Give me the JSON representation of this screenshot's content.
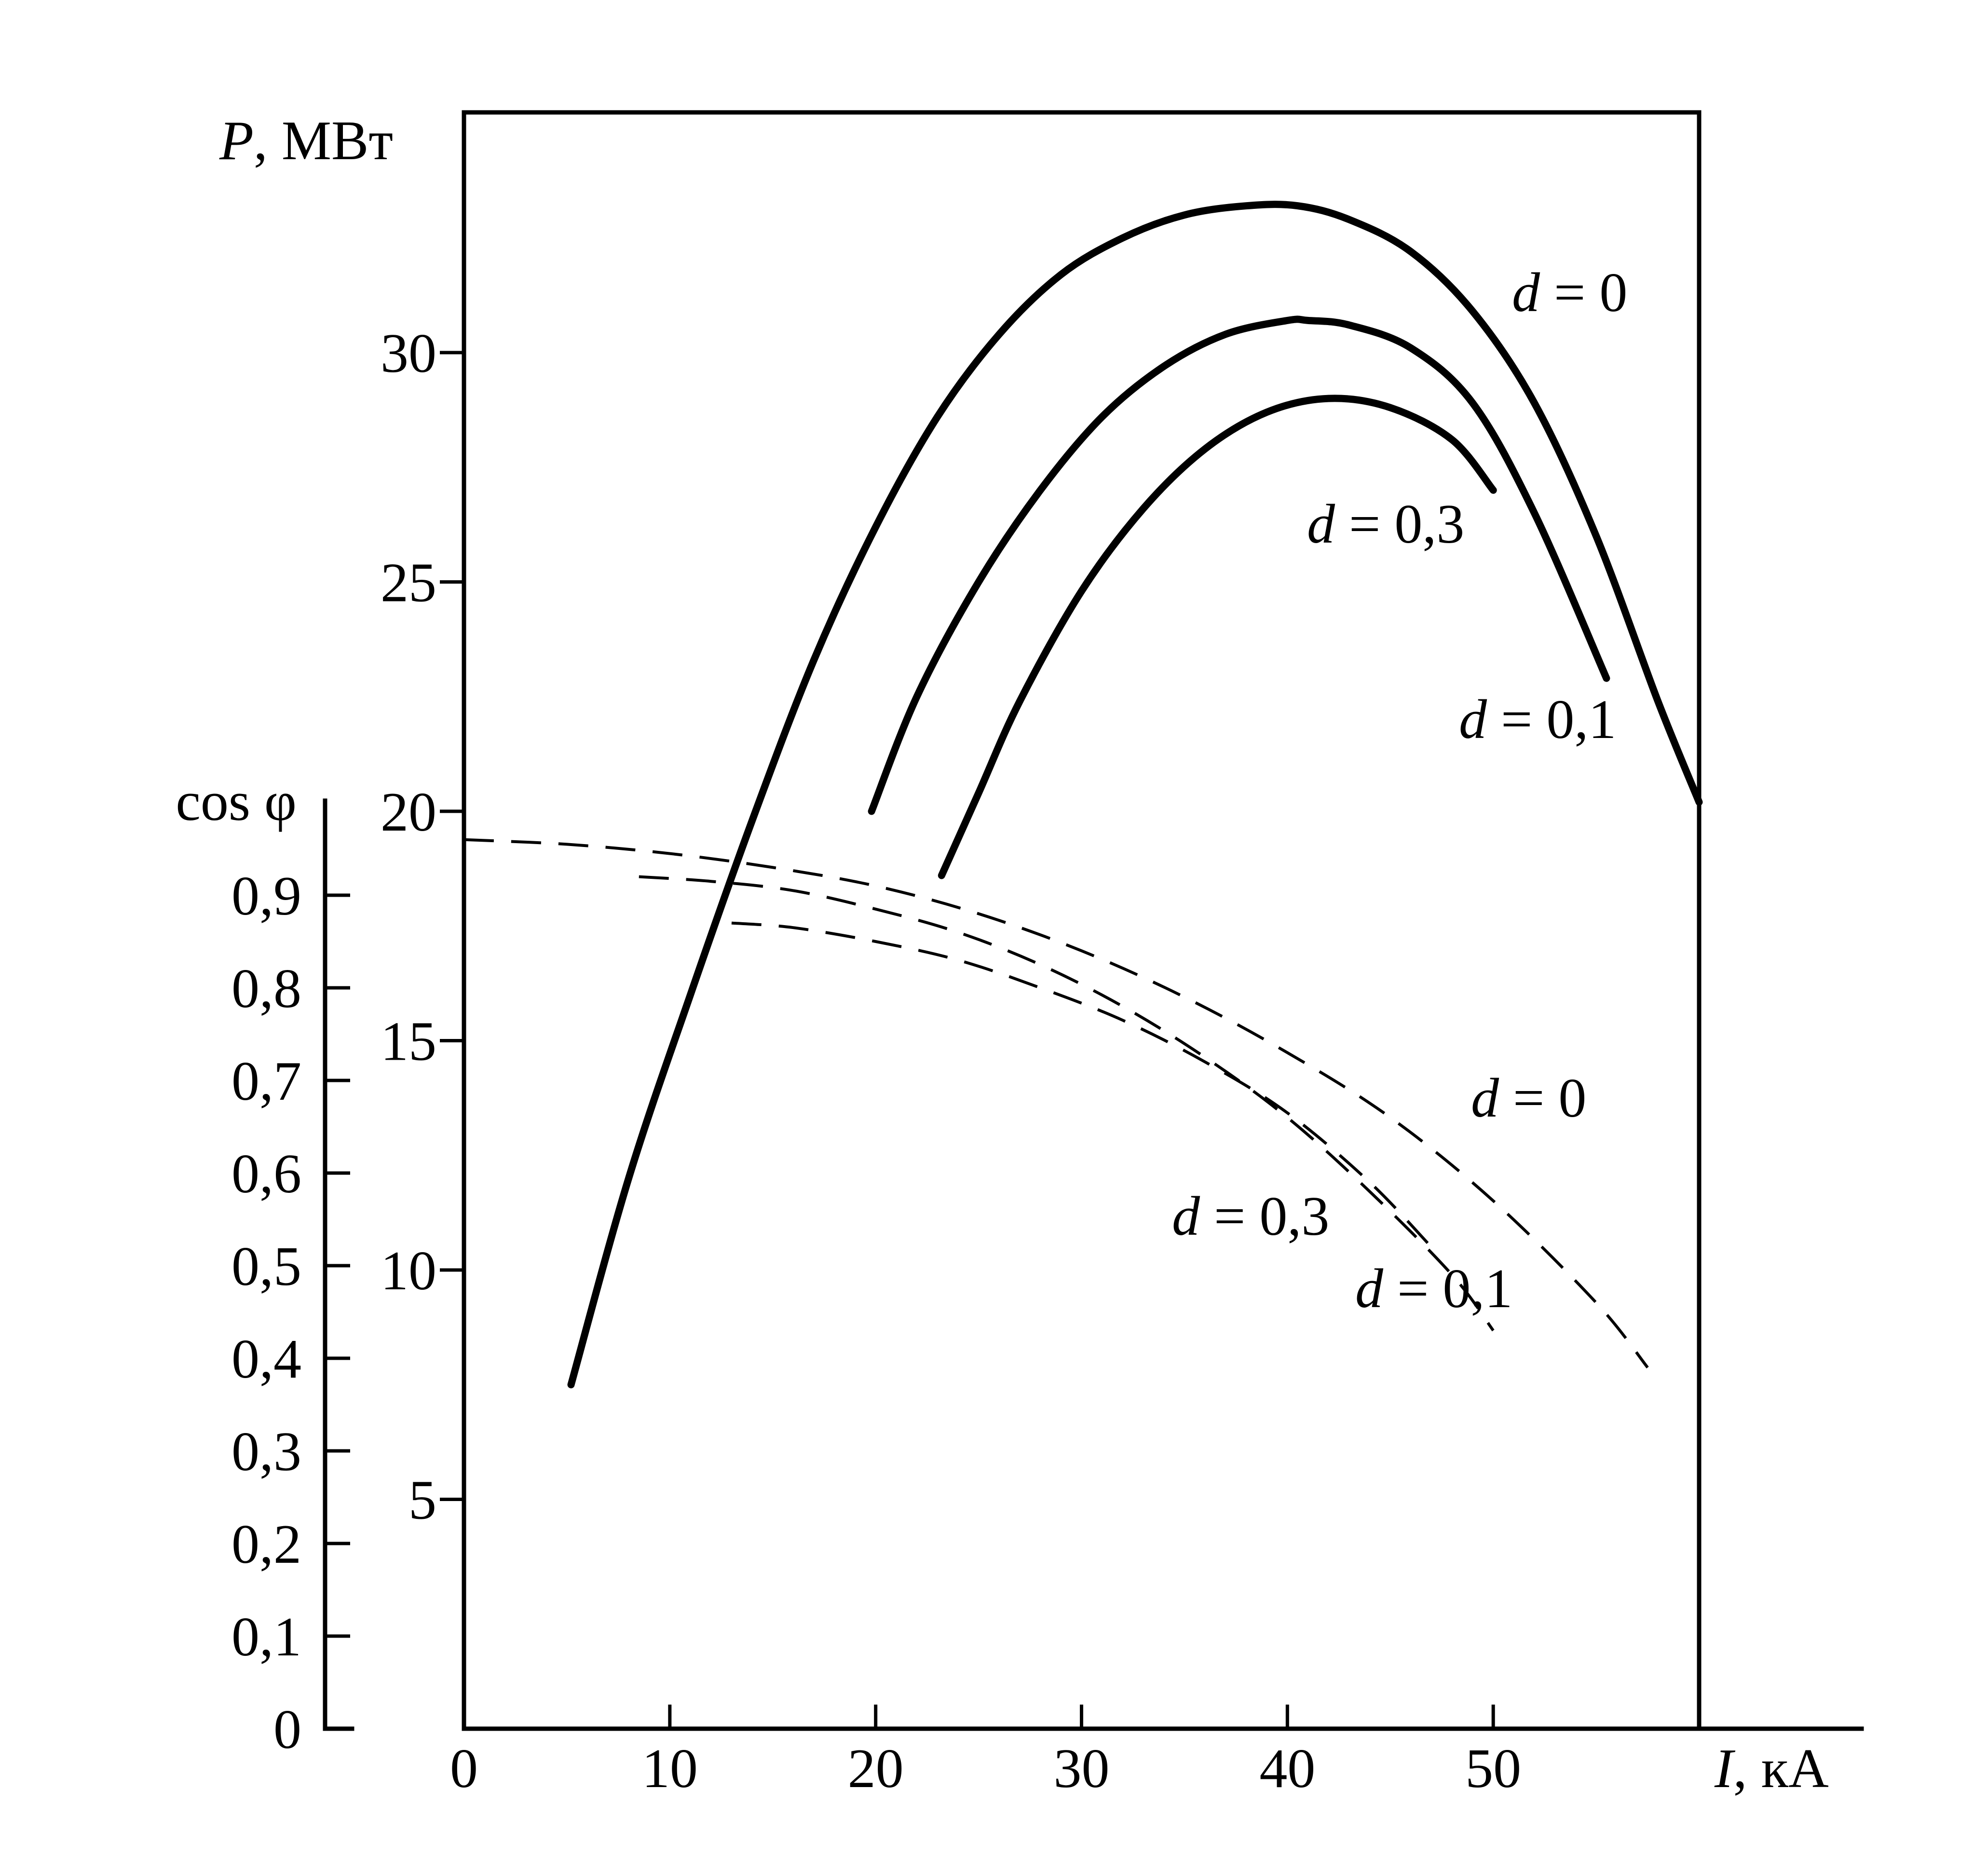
{
  "chart_data": {
    "type": "line",
    "ylabel": "P, МВт",
    "ylabel_parts": {
      "var": "P",
      "rest": ", МВт"
    },
    "y2label": "cos φ",
    "xlabel": "I, кА",
    "xlabel_parts": {
      "var": "I",
      "rest": ", кА"
    },
    "xlim": [
      0,
      60
    ],
    "ylim": [
      0,
      35
    ],
    "y2lim": [
      0,
      1
    ],
    "x_ticks": [
      "0",
      "10",
      "20",
      "30",
      "40",
      "50"
    ],
    "y_ticks": [
      "5",
      "10",
      "15",
      "20",
      "25",
      "30"
    ],
    "y2_ticks": [
      "0",
      "0,1",
      "0,2",
      "0,3",
      "0,4",
      "0,5",
      "0,6",
      "0,7",
      "0,8",
      "0,9"
    ],
    "grid": false,
    "legend": "none",
    "series": [
      {
        "name": "d = 0",
        "axis": "P",
        "style": "solid",
        "x": [
          5.2,
          8,
          11,
          14,
          17,
          20,
          23,
          26,
          29,
          32,
          35,
          38,
          40.5,
          43,
          46,
          49,
          52,
          55,
          58,
          60
        ],
        "y": [
          7.5,
          12.0,
          16.0,
          19.8,
          23.3,
          26.2,
          28.6,
          30.4,
          31.7,
          32.5,
          33.0,
          33.2,
          33.2,
          32.9,
          32.2,
          30.9,
          28.9,
          26.0,
          22.4,
          20.2
        ]
      },
      {
        "name": "d = 0,1",
        "axis": "P",
        "style": "solid",
        "x": [
          19.8,
          22,
          25,
          28,
          31,
          34,
          37,
          40,
          41,
          43,
          46,
          49,
          52,
          55.5
        ],
        "y": [
          20.0,
          22.5,
          25.0,
          27.0,
          28.6,
          29.7,
          30.4,
          30.7,
          30.7,
          30.6,
          30.1,
          28.9,
          26.5,
          22.9
        ]
      },
      {
        "name": "d = 0,3",
        "axis": "P",
        "style": "solid",
        "x": [
          23.2,
          25,
          27,
          30,
          33,
          36,
          39,
          42,
          45,
          48,
          50
        ],
        "y": [
          18.6,
          20.4,
          22.4,
          24.8,
          26.6,
          27.9,
          28.7,
          29.0,
          28.8,
          28.1,
          27.0
        ]
      },
      {
        "name": "d = 0",
        "axis": "cos",
        "style": "dashed",
        "x": [
          0,
          5,
          10,
          15,
          20,
          25,
          30,
          35,
          40,
          45,
          50,
          55,
          57.5
        ],
        "y": [
          0.96,
          0.955,
          0.945,
          0.93,
          0.91,
          0.88,
          0.84,
          0.79,
          0.73,
          0.66,
          0.57,
          0.46,
          0.39
        ]
      },
      {
        "name": "d = 0,1",
        "axis": "cos",
        "style": "dashed",
        "x": [
          8.5,
          12,
          16,
          20,
          24,
          28,
          32,
          36,
          40,
          44,
          48,
          50
        ],
        "y": [
          0.92,
          0.915,
          0.905,
          0.885,
          0.86,
          0.825,
          0.78,
          0.725,
          0.66,
          0.58,
          0.49,
          0.43
        ]
      },
      {
        "name": "d = 0,3",
        "axis": "cos",
        "style": "dashed",
        "x": [
          13,
          16,
          20,
          24,
          28,
          32,
          36,
          40,
          44,
          47
        ],
        "y": [
          0.87,
          0.865,
          0.85,
          0.83,
          0.8,
          0.765,
          0.72,
          0.665,
          0.59,
          0.52
        ]
      }
    ],
    "annotations": [
      {
        "var": "d",
        "rest": " = 0"
      },
      {
        "var": "d",
        "rest": " = 0,3"
      },
      {
        "var": "d",
        "rest": " = 0,1"
      },
      {
        "var": "d",
        "rest": " = 0"
      },
      {
        "var": "d",
        "rest": " = 0,3"
      },
      {
        "var": "d",
        "rest": " = 0,1"
      }
    ]
  }
}
